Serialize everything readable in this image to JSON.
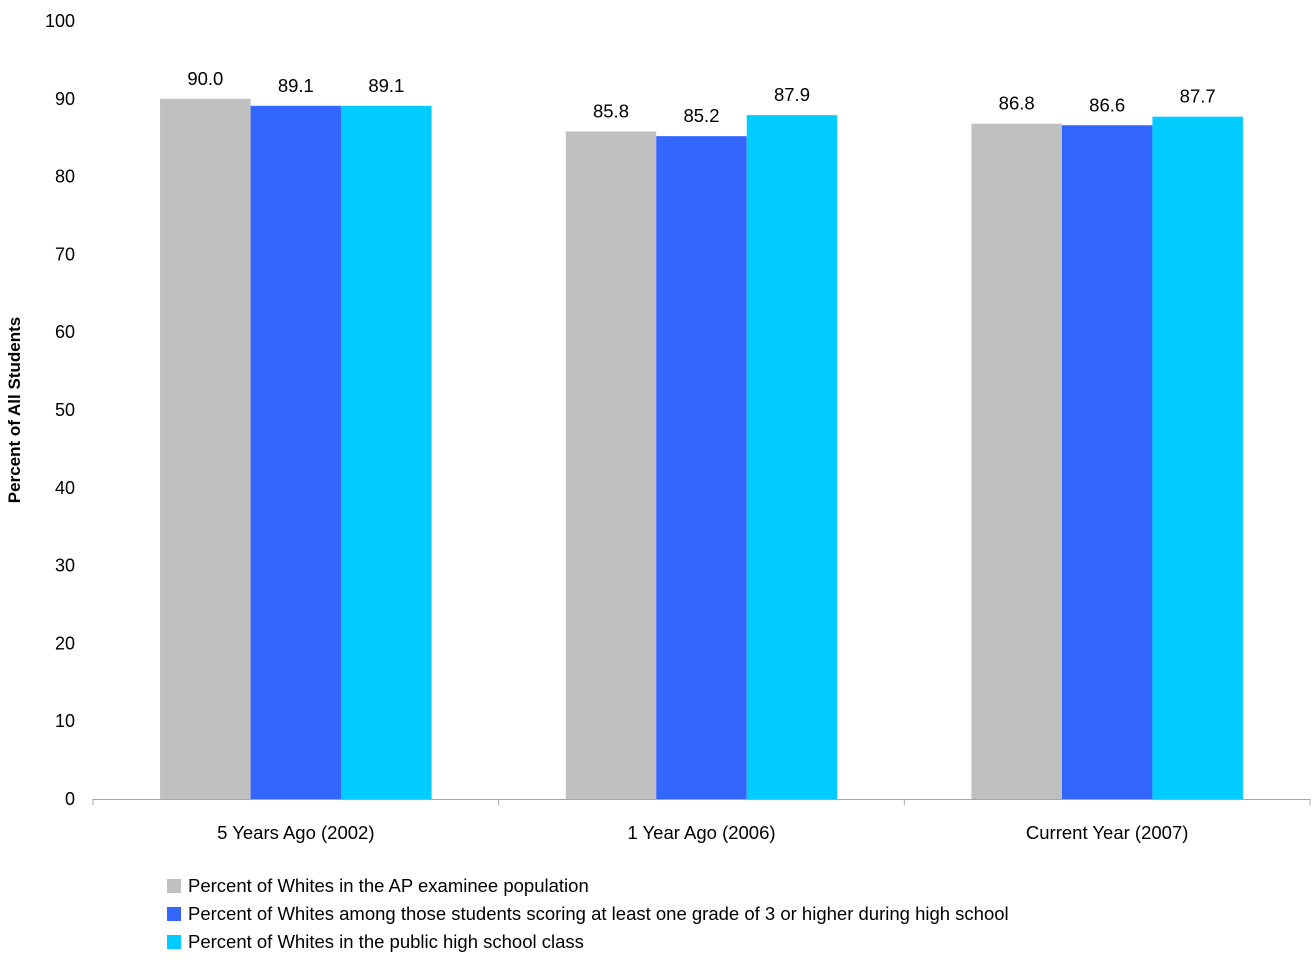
{
  "chart_data": {
    "type": "bar",
    "title": "",
    "xlabel": "",
    "ylabel": "Percent of All Students",
    "ylim": [
      0,
      100
    ],
    "yticks": [
      0,
      10,
      20,
      30,
      40,
      50,
      60,
      70,
      80,
      90,
      100
    ],
    "categories": [
      "5 Years Ago (2002)",
      "1 Year Ago (2006)",
      "Current Year (2007)"
    ],
    "grid": false,
    "legend_position": "bottom-left",
    "series": [
      {
        "name": "Percent of Whites in the AP examinee population",
        "color": "#C0C0C0",
        "values": [
          90.0,
          85.8,
          86.8
        ],
        "labels": [
          "90.0",
          "85.8",
          "86.8"
        ]
      },
      {
        "name": "Percent of Whites among those students scoring at least one grade of 3 or higher during high school",
        "color": "#3366FF",
        "values": [
          89.1,
          85.2,
          86.6
        ],
        "labels": [
          "89.1",
          "85.2",
          "86.6"
        ]
      },
      {
        "name": "Percent of Whites in the public high school class",
        "color": "#00CCFF",
        "values": [
          89.1,
          87.9,
          87.7
        ],
        "labels": [
          "89.1",
          "87.9",
          "87.7"
        ]
      }
    ]
  }
}
